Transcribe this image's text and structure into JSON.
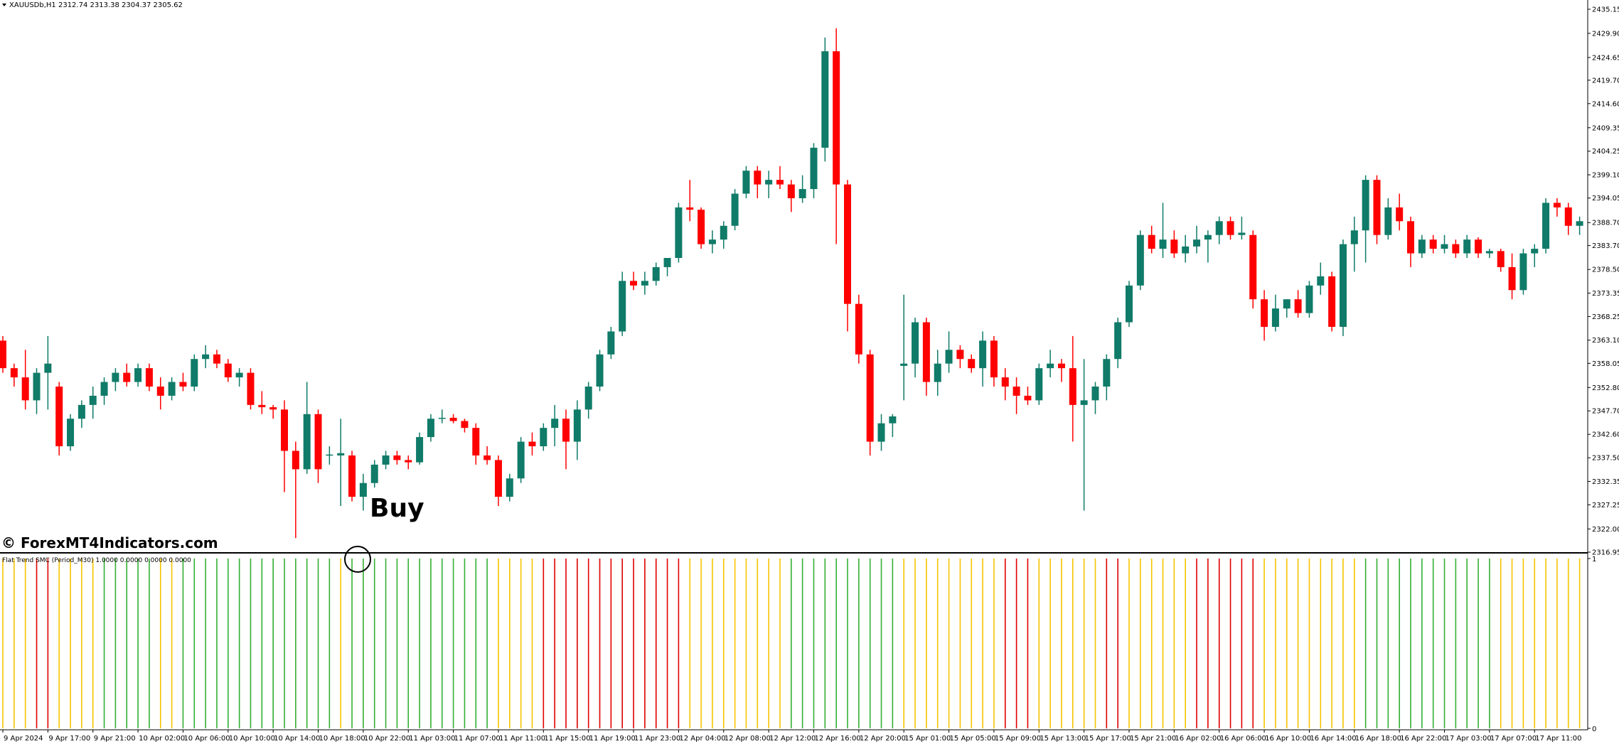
{
  "chart_data": {
    "type": "candlestick",
    "title": "XAUUSDb,H1  2312.74 2313.38 2304.37 2305.62",
    "watermark": "© ForexMT4Indicators.com",
    "annotation": "Buy",
    "up_color": "#0f7b68",
    "down_color": "#ff0000",
    "ylim": [
      2316.95,
      2435.15
    ],
    "yticks": [
      2435.15,
      {
        "value": 2429.9,
        "label": "2429.90"
      },
      2424.65,
      {
        "value": 2419.7,
        "label": "2419.70"
      },
      {
        "value": 2414.6,
        "label": "2414.60"
      },
      2409.35,
      2404.25,
      {
        "value": 2399.1,
        "label": "2399.10"
      },
      2394.05,
      {
        "value": 2388.7,
        "label": "2388.70"
      },
      {
        "value": 2383.7,
        "label": "2383.70"
      },
      {
        "value": 2378.5,
        "label": "2378.50"
      },
      2373.35,
      2368.25,
      {
        "value": 2363.1,
        "label": "2363.10"
      },
      2358.05,
      {
        "value": 2352.8,
        "label": "2352.80"
      },
      {
        "value": 2347.7,
        "label": "2347.70"
      },
      {
        "value": 2342.6,
        "label": "2342.60"
      },
      {
        "value": 2337.5,
        "label": "2337.50"
      },
      2332.35,
      2327.25,
      {
        "value": 2322,
        "label": "2322.00"
      },
      2316.95
    ],
    "categories": [
      "9 Apr 2024",
      null,
      null,
      null,
      "9 Apr 17:00",
      null,
      null,
      null,
      "9 Apr 21:00",
      null,
      null,
      null,
      "10 Apr 02:00",
      null,
      null,
      null,
      "10 Apr 06:00",
      null,
      null,
      null,
      "10 Apr 10:00",
      null,
      null,
      null,
      "10 Apr 14:00",
      null,
      null,
      null,
      "10 Apr 18:00",
      null,
      null,
      null,
      "10 Apr 22:00",
      null,
      null,
      null,
      "11 Apr 03:00",
      null,
      null,
      null,
      "11 Apr 07:00",
      null,
      null,
      null,
      "11 Apr 11:00",
      null,
      null,
      null,
      "11 Apr 15:00",
      null,
      null,
      null,
      "11 Apr 19:00",
      null,
      null,
      null,
      "11 Apr 23:00",
      null,
      null,
      null,
      "12 Apr 04:00",
      null,
      null,
      null,
      "12 Apr 08:00",
      null,
      null,
      null,
      "12 Apr 12:00",
      null,
      null,
      null,
      "12 Apr 16:00",
      null,
      null,
      null,
      "12 Apr 20:00",
      null,
      null,
      null,
      "15 Apr 01:00",
      null,
      null,
      null,
      "15 Apr 05:00",
      null,
      null,
      null,
      "15 Apr 09:00",
      null,
      null,
      null,
      "15 Apr 13:00",
      null,
      null,
      null,
      "15 Apr 17:00",
      null,
      null,
      null,
      "15 Apr 21:00",
      null,
      null,
      null,
      "16 Apr 02:00",
      null,
      null,
      null,
      "16 Apr 06:00",
      null,
      null,
      null,
      "16 Apr 10:00",
      null,
      null,
      null,
      "16 Apr 14:00",
      null,
      null,
      null,
      "16 Apr 18:00",
      null,
      null,
      null,
      "16 Apr 22:00",
      null,
      null,
      null,
      "17 Apr 03:00",
      null,
      null,
      null,
      "17 Apr 07:00",
      null,
      null,
      null,
      "17 Apr 11:00",
      null,
      null,
      null,
      null
    ],
    "candles": [
      [
        2363,
        2364,
        2356,
        2357
      ],
      [
        2357,
        2358,
        2353,
        2355
      ],
      [
        2355,
        2361,
        2348,
        2350
      ],
      [
        2350,
        2357,
        2347,
        2356
      ],
      [
        2356,
        2364,
        2348,
        2358
      ],
      [
        2353,
        2354,
        2338,
        2340
      ],
      [
        2340,
        2347,
        2339,
        2346
      ],
      [
        2346,
        2350,
        2344,
        2349
      ],
      [
        2349,
        2353,
        2346,
        2351
      ],
      [
        2351,
        2355,
        2349,
        2354
      ],
      [
        2354,
        2357,
        2352,
        2356
      ],
      [
        2356,
        2358,
        2353,
        2354
      ],
      [
        2354,
        2358,
        2353,
        2357
      ],
      [
        2357,
        2358,
        2352,
        2353
      ],
      [
        2353,
        2355,
        2348,
        2351
      ],
      [
        2351,
        2355,
        2350,
        2354
      ],
      [
        2354,
        2356,
        2352,
        2353
      ],
      [
        2353,
        2360,
        2352,
        2359
      ],
      [
        2359,
        2362,
        2357,
        2360
      ],
      [
        2360,
        2361,
        2357,
        2358
      ],
      [
        2358,
        2359,
        2354,
        2355
      ],
      [
        2355,
        2357,
        2353,
        2356
      ],
      [
        2356,
        2357,
        2348,
        2349
      ],
      [
        2349,
        2352,
        2347,
        2348.5
      ],
      [
        2348.5,
        2349,
        2346,
        2348
      ],
      [
        2348,
        2350,
        2330,
        2339
      ],
      [
        2339,
        2341,
        2320,
        2335
      ],
      [
        2335,
        2354,
        2334,
        2347
      ],
      [
        2347,
        2348,
        2332,
        2335
      ],
      [
        2338,
        2340,
        2336,
        2338.2
      ],
      [
        2338,
        2346,
        2327,
        2338.5
      ],
      [
        2338,
        2339,
        2328,
        2329
      ],
      [
        2329,
        2334,
        2326,
        2332
      ],
      [
        2332,
        2337,
        2331,
        2336
      ],
      [
        2336,
        2339,
        2335,
        2338
      ],
      [
        2338,
        2339,
        2336,
        2337
      ],
      [
        2337,
        2338,
        2335,
        2336.5
      ],
      [
        2336.5,
        2343,
        2336,
        2342
      ],
      [
        2342,
        2347,
        2341,
        2346
      ],
      [
        2346,
        2348,
        2345,
        2346.2
      ],
      [
        2346.2,
        2347,
        2345,
        2345.5
      ],
      [
        2345.5,
        2346,
        2343,
        2344
      ],
      [
        2344,
        2345,
        2336,
        2338
      ],
      [
        2338,
        2340,
        2336,
        2337
      ],
      [
        2337,
        2338,
        2327,
        2329
      ],
      [
        2329,
        2334,
        2328,
        2333
      ],
      [
        2333,
        2342,
        2332,
        2341
      ],
      [
        2341,
        2343,
        2338,
        2340
      ],
      [
        2340,
        2345,
        2339,
        2344
      ],
      [
        2344,
        2349,
        2340,
        2346
      ],
      [
        2346,
        2348,
        2335,
        2341
      ],
      [
        2341,
        2350,
        2337,
        2348
      ],
      [
        2348,
        2354,
        2346,
        2353
      ],
      [
        2353,
        2361,
        2352,
        2360
      ],
      [
        2360,
        2366,
        2359,
        2365
      ],
      [
        2365,
        2378,
        2364,
        2376
      ],
      [
        2376,
        2378,
        2374,
        2375
      ],
      [
        2375,
        2378,
        2373,
        2376
      ],
      [
        2376,
        2380,
        2375,
        2379
      ],
      [
        2379,
        2381,
        2377,
        2381
      ],
      [
        2381,
        2393,
        2380,
        2392
      ],
      [
        2392,
        2398,
        2389,
        2391.5
      ],
      [
        2391.5,
        2392,
        2383,
        2384
      ],
      [
        2384,
        2387,
        2382,
        2385
      ],
      [
        2385,
        2389,
        2383,
        2388
      ],
      [
        2388,
        2396,
        2387,
        2395
      ],
      [
        2395,
        2401,
        2394,
        2400
      ],
      [
        2400,
        2401,
        2394,
        2397
      ],
      [
        2397,
        2400,
        2394,
        2398
      ],
      [
        2398,
        2401,
        2396,
        2397
      ],
      [
        2397,
        2398,
        2391,
        2394
      ],
      [
        2394,
        2399,
        2393,
        2396
      ],
      [
        2396,
        2406,
        2394,
        2405
      ],
      [
        2405,
        2429,
        2402,
        2426
      ],
      [
        2426,
        2431,
        2384,
        2397
      ],
      [
        2397,
        2398,
        2365,
        2371
      ],
      [
        2371,
        2373,
        2358,
        2360
      ],
      [
        2360,
        2361,
        2338,
        2341
      ],
      [
        2341,
        2347,
        2339,
        2345
      ],
      [
        2345,
        2347,
        2342,
        2346.5
      ],
      [
        2357.5,
        2373,
        2350,
        2358
      ],
      [
        2358,
        2368,
        2355,
        2367
      ],
      [
        2367,
        2368,
        2351,
        2354
      ],
      [
        2354,
        2361,
        2351,
        2358
      ],
      [
        2358,
        2365,
        2356,
        2361
      ],
      [
        2361,
        2362,
        2357,
        2359
      ],
      [
        2359,
        2360,
        2356,
        2357
      ],
      [
        2357,
        2365,
        2353,
        2363
      ],
      [
        2363,
        2364,
        2353,
        2355
      ],
      [
        2355,
        2357,
        2350,
        2353
      ],
      [
        2353,
        2355,
        2347,
        2351
      ],
      [
        2351,
        2353,
        2349,
        2350
      ],
      [
        2350,
        2358,
        2349,
        2357
      ],
      [
        2357,
        2361,
        2355,
        2358
      ],
      [
        2358,
        2359,
        2354,
        2357
      ],
      [
        2357,
        2364,
        2341,
        2349
      ],
      [
        2349,
        2359,
        2326,
        2350
      ],
      [
        2350,
        2354,
        2347,
        2353
      ],
      [
        2353,
        2360,
        2350,
        2359
      ],
      [
        2359,
        2368,
        2357,
        2367
      ],
      [
        2367,
        2376,
        2366,
        2375
      ],
      [
        2375,
        2387,
        2374,
        2386
      ],
      [
        2386,
        2388,
        2382,
        2383
      ],
      [
        2383,
        2393,
        2381,
        2385
      ],
      [
        2385,
        2387,
        2381,
        2382
      ],
      [
        2382,
        2386,
        2380,
        2383.5
      ],
      [
        2383.5,
        2388,
        2382,
        2385
      ],
      [
        2385,
        2387,
        2380,
        2386
      ],
      [
        2386,
        2390,
        2384,
        2389
      ],
      [
        2389,
        2390,
        2385,
        2386
      ],
      [
        2386,
        2390,
        2385,
        2386.5
      ],
      [
        2386,
        2387,
        2370,
        2372
      ],
      [
        2372,
        2374,
        2363,
        2366
      ],
      [
        2366,
        2373,
        2365,
        2370
      ],
      [
        2370,
        2372,
        2368,
        2372
      ],
      [
        2372,
        2374,
        2368,
        2369
      ],
      [
        2369,
        2376,
        2368,
        2375
      ],
      [
        2375,
        2380,
        2373,
        2377
      ],
      [
        2377,
        2378,
        2365,
        2366
      ],
      [
        2366,
        2385,
        2364,
        2384
      ],
      [
        2384,
        2390,
        2378,
        2387
      ],
      [
        2387,
        2399,
        2380,
        2398
      ],
      [
        2398,
        2399,
        2384,
        2386
      ],
      [
        2386,
        2394,
        2385,
        2392
      ],
      [
        2392,
        2395,
        2387,
        2389
      ],
      [
        2389,
        2390,
        2379,
        2382
      ],
      [
        2382,
        2386,
        2381,
        2385
      ],
      [
        2385,
        2386,
        2382,
        2383
      ],
      [
        2383,
        2386,
        2382,
        2384
      ],
      [
        2384,
        2385,
        2381,
        2382
      ],
      [
        2382,
        2386,
        2381,
        2385
      ],
      [
        2385,
        2385.5,
        2381,
        2382
      ],
      [
        2382,
        2383,
        2381,
        2382.5
      ],
      [
        2382.5,
        2383,
        2378,
        2379
      ],
      [
        2379,
        2382,
        2372,
        2374
      ],
      [
        2374,
        2383,
        2373,
        2382
      ],
      [
        2382,
        2384,
        2379,
        2383
      ],
      [
        2383,
        2394,
        2382,
        2393
      ],
      [
        2393,
        2394,
        2390,
        2392
      ],
      [
        2392,
        2393,
        2386,
        2388
      ],
      [
        2388,
        2390,
        2386,
        2389
      ]
    ],
    "indicator": {
      "title": "Flat Trend SMC (Period_M30) 1.0000 0.0000 0.0000 0.0000",
      "ylim": [
        0,
        1
      ],
      "yticks": [
        0,
        1
      ],
      "values": [
        1,
        1,
        1,
        1,
        1,
        1,
        1,
        1,
        1,
        1,
        1,
        1,
        1,
        1,
        1,
        1,
        1,
        1,
        1,
        1,
        1,
        1,
        1,
        1,
        1,
        1,
        1,
        1,
        1,
        1,
        1,
        1,
        1,
        1,
        1,
        1,
        1,
        1,
        1,
        1,
        1,
        1,
        1,
        1,
        1,
        1,
        1,
        1,
        1,
        1,
        1,
        1,
        1,
        1,
        1,
        1,
        1,
        1,
        1,
        1,
        1,
        1,
        1,
        1,
        1,
        1,
        1,
        1,
        1,
        1,
        1,
        1,
        1,
        1,
        1,
        1,
        1,
        1,
        1,
        1,
        1,
        1,
        1,
        1,
        1,
        1,
        1,
        1,
        1,
        1,
        1,
        1,
        1,
        1,
        1,
        1,
        1,
        1,
        1,
        1,
        1,
        1,
        1,
        1,
        1,
        1,
        1,
        1,
        1,
        1,
        1,
        1,
        1,
        1,
        1,
        1,
        1,
        1,
        1,
        1,
        1,
        1,
        1,
        1,
        1,
        1,
        1,
        1,
        1,
        1,
        1,
        1,
        1,
        1,
        1,
        1,
        1,
        1,
        1,
        1,
        1
      ],
      "colors": [
        "#f5c400",
        "#f5c400",
        "#f5c400",
        "#e00000",
        "#e00000",
        "#f5c400",
        "#f5c400",
        "#f5c400",
        "#f5c400",
        "#33b033",
        "#33b033",
        "#33b033",
        "#33b033",
        "#33b033",
        "#f5c400",
        "#f5c400",
        "#33b033",
        "#33b033",
        "#33b033",
        "#33b033",
        "#33b033",
        "#33b033",
        "#33b033",
        "#33b033",
        "#33b033",
        "#33b033",
        "#33b033",
        "#33b033",
        "#33b033",
        "#33b033",
        "#f5c400",
        "#33b033",
        "#33b033",
        "#33b033",
        "#33b033",
        "#33b033",
        "#33b033",
        "#33b033",
        "#33b033",
        "#33b033",
        "#33b033",
        "#33b033",
        "#33b033",
        "#33b033",
        "#f5c400",
        "#f5c400",
        "#f5c400",
        "#f5c400",
        "#e00000",
        "#e00000",
        "#e00000",
        "#e00000",
        "#e00000",
        "#e00000",
        "#e00000",
        "#e00000",
        "#e00000",
        "#e00000",
        "#e00000",
        "#e00000",
        "#e00000",
        "#f5c400",
        "#f5c400",
        "#f5c400",
        "#f5c400",
        "#f5c400",
        "#f5c400",
        "#f5c400",
        "#f5c400",
        "#f5c400",
        "#33b033",
        "#33b033",
        "#33b033",
        "#33b033",
        "#33b033",
        "#33b033",
        "#33b033",
        "#33b033",
        "#33b033",
        "#33b033",
        "#f5c400",
        "#f5c400",
        "#f5c400",
        "#f5c400",
        "#f5c400",
        "#f5c400",
        "#f5c400",
        "#f5c400",
        "#f5c400",
        "#e00000",
        "#e00000",
        "#e00000",
        "#f5c400",
        "#f5c400",
        "#f5c400",
        "#f5c400",
        "#f5c400",
        "#f5c400",
        "#e00000",
        "#e00000",
        "#f5c400",
        "#f5c400",
        "#f5c400",
        "#f5c400",
        "#f5c400",
        "#f5c400",
        "#e00000",
        "#e00000",
        "#e00000",
        "#e00000",
        "#e00000",
        "#e00000",
        "#f5c400",
        "#f5c400",
        "#f5c400",
        "#f5c400",
        "#f5c400",
        "#f5c400",
        "#f5c400",
        "#f5c400",
        "#f5c400",
        "#33b033",
        "#33b033",
        "#33b033",
        "#33b033",
        "#33b033",
        "#33b033",
        "#33b033",
        "#33b033",
        "#33b033",
        "#33b033",
        "#33b033",
        "#33b033",
        "#f5c400",
        "#f5c400",
        "#f5c400",
        "#f5c400",
        "#f5c400",
        "#f5c400",
        "#f5c400",
        "#f5c400"
      ]
    }
  }
}
